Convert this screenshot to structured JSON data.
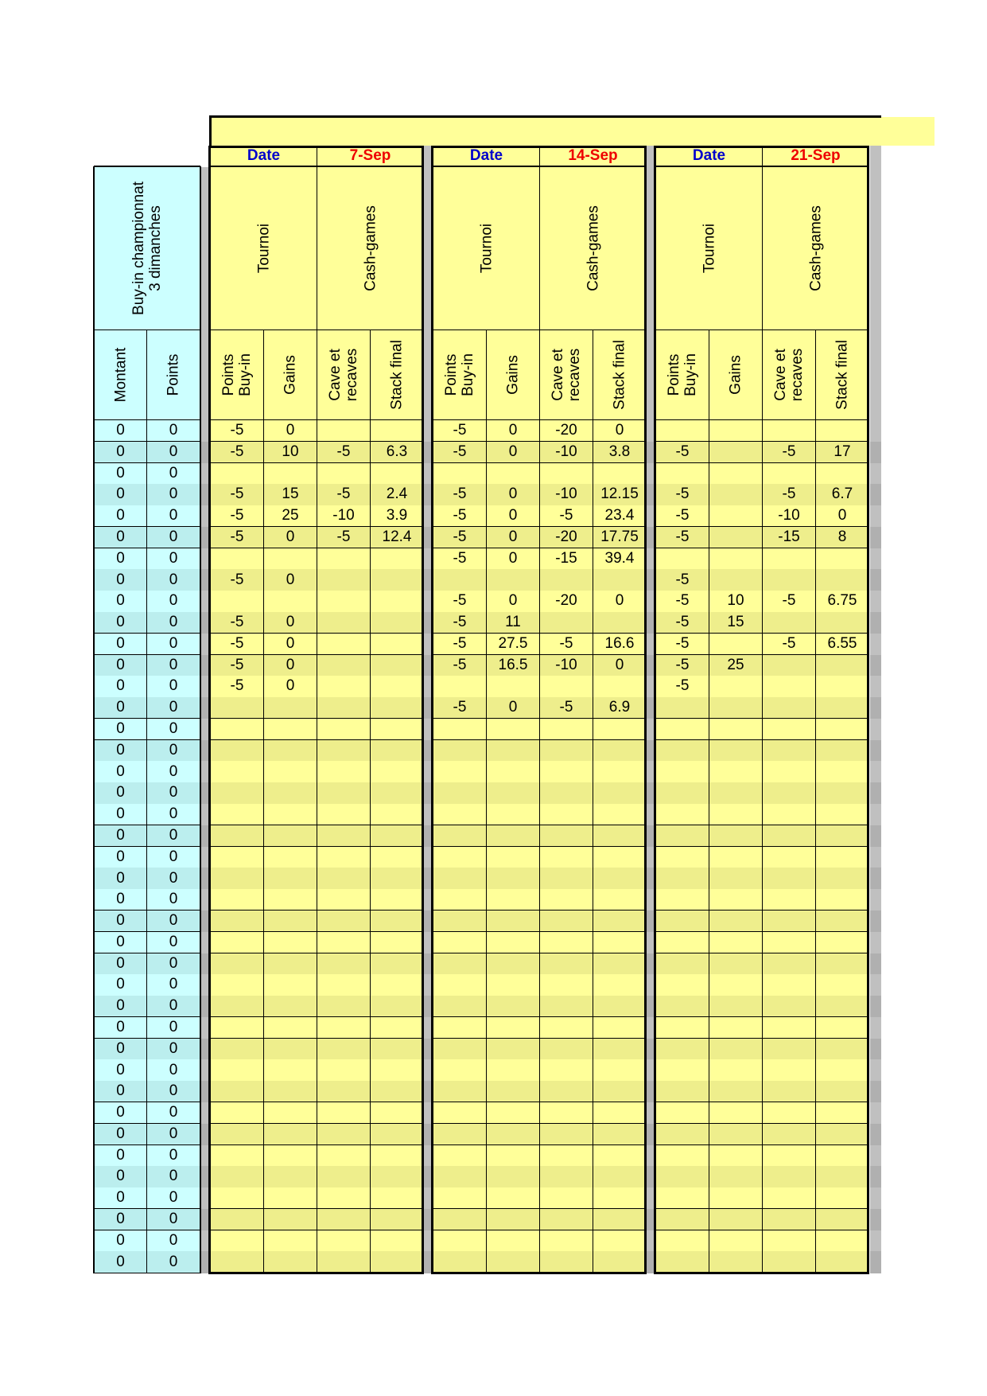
{
  "colors": {
    "yellow": "#ffff99",
    "yellow_alt": "#eeee8c",
    "cyan": "#ccffff",
    "cyan_alt": "#bbeeee",
    "gray": "#c0c0c0",
    "gray_alt": "#b0b0b0",
    "date_label": "#0000cc",
    "date_value": "#ee0000"
  },
  "left": {
    "header": "Buy-in championnat\n3 dimanches",
    "columns": [
      "Montant",
      "Points"
    ],
    "montant": [
      "0",
      "0",
      "0",
      "0",
      "0",
      "0",
      "0",
      "0",
      "0",
      "0",
      "0",
      "0",
      "0",
      "0",
      "0",
      "0",
      "0",
      "0",
      "0",
      "0",
      "0",
      "0",
      "0",
      "0",
      "0",
      "0",
      "0",
      "0",
      "0",
      "0",
      "0",
      "0",
      "0",
      "0",
      "0",
      "0",
      "0",
      "0",
      "0",
      "0"
    ],
    "points": [
      "0",
      "0",
      "0",
      "0",
      "0",
      "0",
      "0",
      "0",
      "0",
      "0",
      "0",
      "0",
      "0",
      "0",
      "0",
      "0",
      "0",
      "0",
      "0",
      "0",
      "0",
      "0",
      "0",
      "0",
      "0",
      "0",
      "0",
      "0",
      "0",
      "0",
      "0",
      "0",
      "0",
      "0",
      "0",
      "0",
      "0",
      "0",
      "0",
      "0"
    ]
  },
  "blocks": [
    {
      "date_label": "Date",
      "date": "7-Sep",
      "groups": [
        "Tournoi",
        "Cash-games"
      ],
      "columns": [
        "Points\nBuy-in",
        "Gains",
        "Cave et\nrecaves",
        "Stack final"
      ],
      "rows": [
        [
          "-5",
          "0",
          "",
          ""
        ],
        [
          "-5",
          "10",
          "-5",
          "6.3"
        ],
        [
          "",
          "",
          "",
          ""
        ],
        [
          "-5",
          "15",
          "-5",
          "2.4"
        ],
        [
          "-5",
          "25",
          "-10",
          "3.9"
        ],
        [
          "-5",
          "0",
          "-5",
          "12.4"
        ],
        [
          "",
          "",
          "",
          ""
        ],
        [
          "-5",
          "0",
          "",
          ""
        ],
        [
          "",
          "",
          "",
          ""
        ],
        [
          "-5",
          "0",
          "",
          ""
        ],
        [
          "-5",
          "0",
          "",
          ""
        ],
        [
          "-5",
          "0",
          "",
          ""
        ],
        [
          "-5",
          "0",
          "",
          ""
        ],
        [
          "",
          "",
          "",
          ""
        ]
      ]
    },
    {
      "date_label": "Date",
      "date": "14-Sep",
      "groups": [
        "Tournoi",
        "Cash-games"
      ],
      "columns": [
        "Points\nBuy-in",
        "Gains",
        "Cave et\nrecaves",
        "Stack final"
      ],
      "rows": [
        [
          "-5",
          "0",
          "-20",
          "0"
        ],
        [
          "-5",
          "0",
          "-10",
          "3.8"
        ],
        [
          "",
          "",
          "",
          ""
        ],
        [
          "-5",
          "0",
          "-10",
          "12.15"
        ],
        [
          "-5",
          "0",
          "-5",
          "23.4"
        ],
        [
          "-5",
          "0",
          "-20",
          "17.75"
        ],
        [
          "-5",
          "0",
          "-15",
          "39.4"
        ],
        [
          "",
          "",
          "",
          ""
        ],
        [
          "-5",
          "0",
          "-20",
          "0"
        ],
        [
          "-5",
          "11",
          "",
          ""
        ],
        [
          "-5",
          "27.5",
          "-5",
          "16.6"
        ],
        [
          "-5",
          "16.5",
          "-10",
          "0"
        ],
        [
          "",
          "",
          "",
          ""
        ],
        [
          "-5",
          "0",
          "-5",
          "6.9"
        ]
      ]
    },
    {
      "date_label": "Date",
      "date": "21-Sep",
      "groups": [
        "Tournoi",
        "Cash-games"
      ],
      "columns": [
        "Points\nBuy-in",
        "Gains",
        "Cave et\nrecaves",
        "Stack final"
      ],
      "rows": [
        [
          "",
          "",
          "",
          ""
        ],
        [
          "-5",
          "",
          "-5",
          "17"
        ],
        [
          "",
          "",
          "",
          ""
        ],
        [
          "-5",
          "",
          "-5",
          "6.7"
        ],
        [
          "-5",
          "",
          "-10",
          "0"
        ],
        [
          "-5",
          "",
          "-15",
          "8"
        ],
        [
          "",
          "",
          "",
          ""
        ],
        [
          "-5",
          "",
          "",
          ""
        ],
        [
          "-5",
          "10",
          "-5",
          "6.75"
        ],
        [
          "-5",
          "15",
          "",
          ""
        ],
        [
          "-5",
          "",
          "-5",
          "6.55"
        ],
        [
          "-5",
          "25",
          "",
          ""
        ],
        [
          "-5",
          "",
          "",
          ""
        ],
        [
          "",
          "",
          "",
          ""
        ]
      ]
    }
  ]
}
